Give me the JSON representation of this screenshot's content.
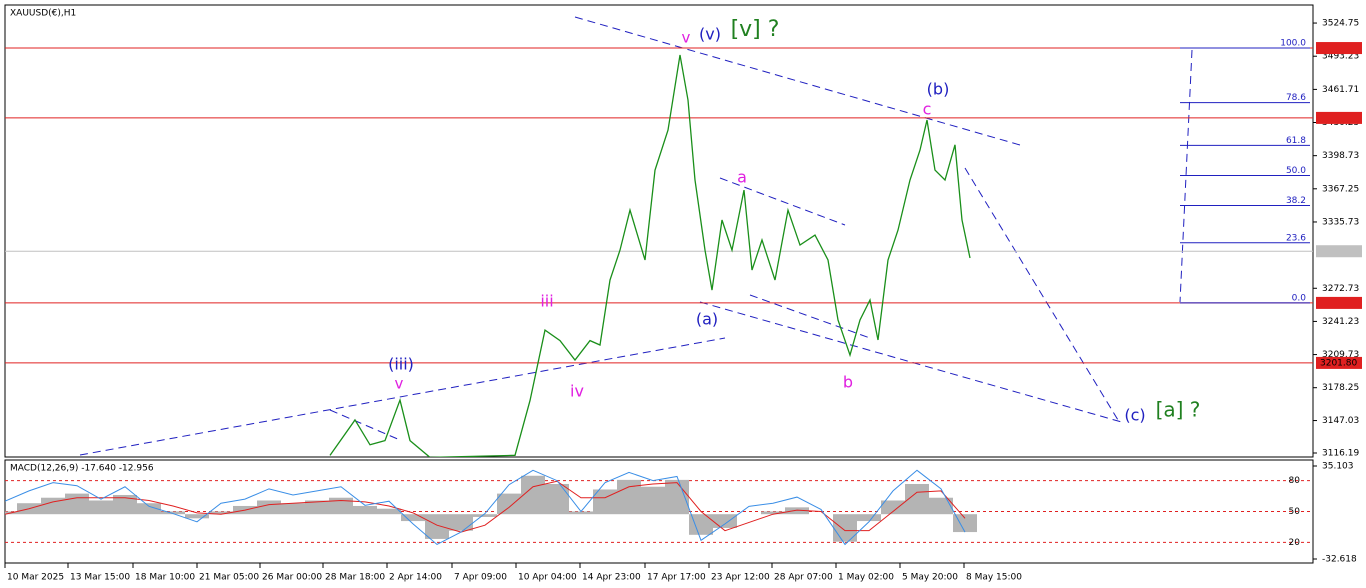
{
  "chart_data": [
    {
      "type": "line",
      "title": "XAUUSD(€),H1",
      "x": [
        325,
        350,
        365,
        380,
        395,
        405,
        425,
        510,
        525,
        540,
        555,
        570,
        585,
        595,
        605,
        615,
        625,
        640,
        650,
        663,
        675,
        683,
        690,
        700,
        707,
        717,
        727,
        739,
        747,
        757,
        770,
        783,
        795,
        810,
        823,
        833,
        845,
        855,
        865,
        873,
        883,
        893,
        905,
        915,
        922,
        930,
        940,
        950,
        957,
        965
      ],
      "series": [
        {
          "name": "XAUUSD",
          "color": "#1a8f1a",
          "values": [
            3114,
            3147.6,
            3124,
            3128,
            3166.5,
            3128,
            3112,
            3114,
            3166,
            3233,
            3223,
            3204.5,
            3223,
            3218.8,
            3280.6,
            3309,
            3347,
            3299.6,
            3385,
            3423,
            3494.4,
            3451.6,
            3375.6,
            3309,
            3271,
            3337.6,
            3309,
            3366,
            3290,
            3318.6,
            3280.6,
            3347,
            3313.8,
            3323.3,
            3299.6,
            3242.6,
            3209.3,
            3242.6,
            3261.6,
            3223.6,
            3299.6,
            3328,
            3375.6,
            3404,
            3432.6,
            3385,
            3375.6,
            3409,
            3337.6,
            3301.5
          ]
        }
      ],
      "xlim": [
        0,
        1308
      ],
      "xticks": [
        {
          "value": 0,
          "label": "10 Mar 2025"
        },
        {
          "value": 63,
          "label": "13 Mar 15:00"
        },
        {
          "value": 128,
          "label": "18 Mar 10:00"
        },
        {
          "value": 192,
          "label": "21 Mar 05:00"
        },
        {
          "value": 255,
          "label": "26 Mar 00:00"
        },
        {
          "value": 318,
          "label": "28 Mar 18:00"
        },
        {
          "value": 382,
          "label": "2 Apr 14:00"
        },
        {
          "value": 447,
          "label": "7 Apr 09:00"
        },
        {
          "value": 511,
          "label": "10 Apr 04:00"
        },
        {
          "value": 575,
          "label": "14 Apr 23:00"
        },
        {
          "value": 640,
          "label": "17 Apr 17:00"
        },
        {
          "value": 704,
          "label": "23 Apr 12:00"
        },
        {
          "value": 767,
          "label": "28 Apr 07:00"
        },
        {
          "value": 831,
          "label": "1 May 02:00"
        },
        {
          "value": 895,
          "label": "5 May 20:00"
        },
        {
          "value": 959,
          "label": "8 May 15:00"
        }
      ],
      "ylim": [
        3112.4,
        3541.9
      ],
      "yticks": [
        3524.75,
        3493.23,
        3461.71,
        3430.25,
        3398.73,
        3367.25,
        3335.73,
        3272.73,
        3241.23,
        3209.73,
        3178.25,
        3147.03,
        3116.19
      ],
      "levels": [
        {
          "value": 3500.99,
          "color": "#e02020"
        },
        {
          "value": 3434.61,
          "color": "#e02020"
        },
        {
          "value": 3307.93,
          "color": "#c0c0c0"
        },
        {
          "value": 3258.82,
          "color": "#e02020"
        },
        {
          "value": 3201.8,
          "label": "3201.80",
          "color": "#e02020"
        }
      ],
      "fib": [
        {
          "value": 100,
          "label": "100.0"
        },
        {
          "value": 78.6,
          "label": "78.6"
        },
        {
          "value": 61.8,
          "label": "61.8"
        },
        {
          "value": 50,
          "label": "50.0"
        },
        {
          "value": 38.2,
          "label": "38.2"
        },
        {
          "value": 23.6,
          "label": "23.6"
        },
        {
          "value": 0,
          "label": "0.0"
        }
      ],
      "annotations": [
        {
          "text": "v",
          "color": "#e020e0"
        },
        {
          "text": "(v)",
          "color": "#2020c0"
        },
        {
          "text": "[v] ?",
          "color": "#208020"
        },
        {
          "text": "(b)",
          "color": "#2020c0"
        },
        {
          "text": "c",
          "color": "#e020e0"
        },
        {
          "text": "a",
          "color": "#e020e0"
        },
        {
          "text": "iii",
          "color": "#e020e0"
        },
        {
          "text": "(a)",
          "color": "#2020c0"
        },
        {
          "text": "(iii)",
          "color": "#2020c0"
        },
        {
          "text": "v",
          "color": "#e020e0"
        },
        {
          "text": "iv",
          "color": "#e020e0"
        },
        {
          "text": "b",
          "color": "#e020e0"
        },
        {
          "text": "(c)",
          "color": "#2020c0"
        },
        {
          "text": "[a] ?",
          "color": "#208020"
        }
      ]
    },
    {
      "type": "macd",
      "title": "MACD(12,26,9) -17.640 -12.956",
      "x": [
        0,
        24,
        48,
        72,
        96,
        120,
        144,
        168,
        192,
        216,
        240,
        264,
        288,
        312,
        336,
        360,
        384,
        408,
        432,
        456,
        480,
        504,
        528,
        552,
        576,
        600,
        624,
        648,
        672,
        696,
        720,
        744,
        768,
        792,
        816,
        840,
        864,
        888,
        912,
        936,
        960
      ],
      "series": [
        {
          "name": "MACD",
          "color": "#b4b4b4",
          "values": [
            2,
            8,
            12,
            15,
            10,
            14,
            8,
            2,
            -3,
            2,
            6,
            10,
            8,
            10,
            12,
            6,
            4,
            -5,
            -18,
            -12,
            -2,
            15,
            28,
            22,
            2,
            18,
            25,
            20,
            25,
            -15,
            -10,
            0,
            2,
            5,
            0,
            -20,
            -5,
            10,
            22,
            12,
            -13
          ]
        },
        {
          "name": "Signal",
          "color": "#e02020",
          "values": [
            0,
            4,
            9,
            12,
            12,
            12,
            10,
            6,
            1,
            0,
            3,
            7,
            8,
            9,
            10,
            9,
            6,
            1,
            -8,
            -13,
            -8,
            5,
            20,
            24,
            12,
            12,
            20,
            22,
            23,
            2,
            -12,
            -6,
            0,
            3,
            2,
            -12,
            -12,
            2,
            16,
            17,
            -3
          ]
        },
        {
          "name": "Osc",
          "color": "#3a8ee6",
          "axis": "y2",
          "values": [
            60,
            70,
            78,
            75,
            62,
            74,
            55,
            48,
            40,
            58,
            62,
            72,
            66,
            70,
            74,
            56,
            60,
            38,
            18,
            30,
            48,
            76,
            90,
            80,
            50,
            78,
            88,
            80,
            84,
            22,
            38,
            55,
            58,
            64,
            52,
            18,
            40,
            70,
            90,
            72,
            30
          ]
        }
      ],
      "ylim": [
        -35.53,
        39.47
      ],
      "yticks": [
        35.103,
        -32.618
      ],
      "y2lim": [
        0,
        100
      ],
      "y2ticks": [
        20,
        50,
        80
      ]
    }
  ]
}
